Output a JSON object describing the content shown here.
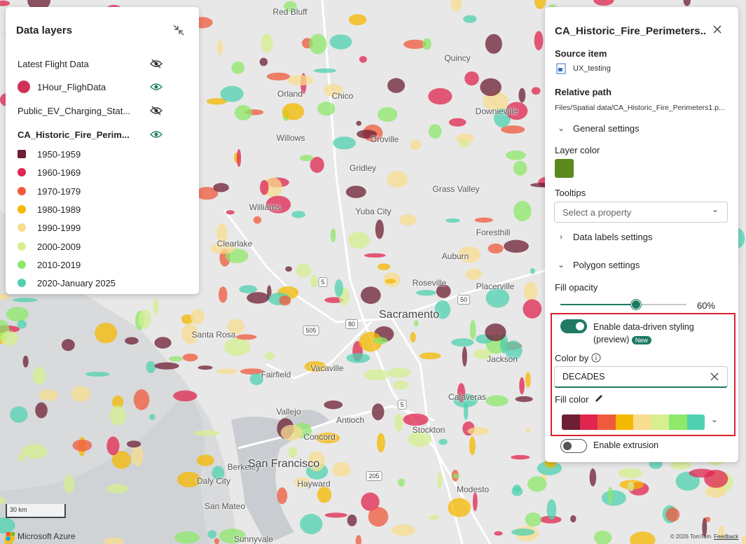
{
  "data_layers": {
    "title": "Data layers",
    "layers": [
      {
        "name": "Latest Flight Data",
        "visible": false
      },
      {
        "name": "1Hour_FlighData",
        "visible": true,
        "color": "#cf3458"
      },
      {
        "name": "Public_EV_Charging_Stat...",
        "visible": false
      },
      {
        "name": "CA_Historic_Fire_Perim...",
        "visible": true
      }
    ],
    "legend": [
      {
        "label": "1950-1959",
        "color": "#6e1f33"
      },
      {
        "label": "1960-1969",
        "color": "#e0264f"
      },
      {
        "label": "1970-1979",
        "color": "#f05a3c"
      },
      {
        "label": "1980-1989",
        "color": "#f5b800"
      },
      {
        "label": "1990-1999",
        "color": "#f8dd8f"
      },
      {
        "label": "2000-2009",
        "color": "#d6ef8f"
      },
      {
        "label": "2010-2019",
        "color": "#8ee86a"
      },
      {
        "label": "2020-January 2025",
        "color": "#4fd1b0"
      }
    ]
  },
  "settings_panel": {
    "title": "CA_Historic_Fire_Perimeters...",
    "source_item_label": "Source item",
    "source_item": "UX_testing",
    "relative_path_label": "Relative path",
    "relative_path": "Files/Spatial data/CA_Historic_Fire_Perimeters1.p...",
    "general_settings": "General settings",
    "layer_color_label": "Layer color",
    "layer_color": "#5a8a1e",
    "tooltips_label": "Tooltips",
    "tooltips_placeholder": "Select a property",
    "data_labels_settings": "Data labels settings",
    "polygon_settings": "Polygon settings",
    "fill_opacity_label": "Fill opacity",
    "fill_opacity": {
      "value": 60,
      "label": "60%"
    },
    "data_driven_label": "Enable data-driven styling (preview)",
    "data_driven_enabled": true,
    "new_badge": "New",
    "color_by_label": "Color by",
    "color_by": "DECADES",
    "fill_color_label": "Fill color",
    "extrusion_label": "Enable extrusion",
    "extrusion_enabled": false
  },
  "map": {
    "labels": [
      "Red Bluff",
      "Quincy",
      "Orland",
      "Chico",
      "Oroville",
      "Downieville",
      "Willows",
      "Gridley",
      "Grass Valley",
      "Williams",
      "Yuba City",
      "Foresthill",
      "Clearlake",
      "Auburn",
      "Roseville",
      "Placerville",
      "Sacramento",
      "Santa Rosa",
      "Vacaville",
      "Fairfield",
      "Jackson",
      "Vallejo",
      "Antioch",
      "Stockton",
      "Concord",
      "Berkeley",
      "San Francisco",
      "Hayward",
      "Daly City",
      "Modesto",
      "San Mateo",
      "Sunnyvale",
      "Calaveras"
    ],
    "shields": [
      "5",
      "505",
      "80",
      "50",
      "5",
      "205"
    ],
    "scale": "30 km",
    "brand": "Microsoft Azure",
    "attribution": "© 2026 TomTom",
    "feedback": "Feedback"
  }
}
